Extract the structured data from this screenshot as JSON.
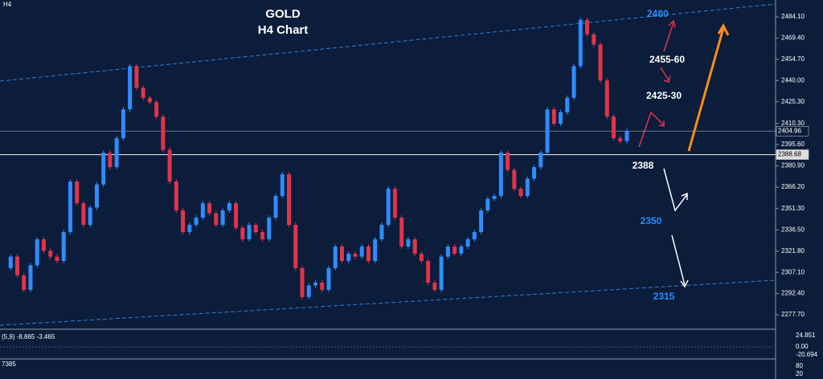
{
  "chart_data": {
    "type": "candlestick",
    "title": "GOLD",
    "subtitle": "H4 Chart",
    "timeframe": "H4",
    "values": [
      2310,
      2318,
      2305,
      2295,
      2312,
      2330,
      2322,
      2318,
      2315,
      2335,
      2370,
      2355,
      2340,
      2352,
      2368,
      2390,
      2380,
      2400,
      2420,
      2450,
      2435,
      2428,
      2425,
      2415,
      2392,
      2370,
      2350,
      2335,
      2340,
      2345,
      2355,
      2348,
      2340,
      2350,
      2355,
      2338,
      2330,
      2340,
      2335,
      2330,
      2345,
      2360,
      2375,
      2340,
      2310,
      2290,
      2298,
      2300,
      2295,
      2310,
      2325,
      2315,
      2320,
      2318,
      2325,
      2315,
      2330,
      2340,
      2365,
      2345,
      2325,
      2330,
      2320,
      2315,
      2300,
      2295,
      2318,
      2325,
      2320,
      2325,
      2330,
      2335,
      2350,
      2358,
      2360,
      2390,
      2378,
      2365,
      2360,
      2372,
      2380,
      2390,
      2420,
      2410,
      2418,
      2428,
      2450,
      2482,
      2472,
      2465,
      2440,
      2415,
      2400,
      2398,
      2405
    ],
    "up_color": "#2f8cff",
    "down_color": "#e0344a",
    "ylim": [
      2267.7,
      2495.8
    ],
    "yticks": [
      {
        "value": 2277.7,
        "label": "2277.70"
      },
      {
        "value": 2292.4,
        "label": "2292.40"
      },
      {
        "value": 2307.1,
        "label": "2307.10"
      },
      {
        "value": 2321.8,
        "label": "2321.80"
      },
      {
        "value": 2336.5,
        "label": "2336.50"
      },
      {
        "value": 2351.3,
        "label": "2351.30"
      },
      {
        "value": 2366.2,
        "label": "2366.20"
      },
      {
        "value": 2380.9,
        "label": "2380.90"
      },
      {
        "value": 2395.6,
        "label": "2395.60"
      },
      {
        "value": 2410.3,
        "label": "2410.30"
      },
      {
        "value": 2425.3,
        "label": "2425.30"
      },
      {
        "value": 2440.0,
        "label": "2440.00"
      },
      {
        "value": 2454.7,
        "label": "2454.70"
      },
      {
        "value": 2469.4,
        "label": "2469.40"
      },
      {
        "value": 2484.1,
        "label": "2484.10"
      }
    ],
    "price_lines": [
      {
        "value": 2404.96,
        "label": "2404.96"
      },
      {
        "value": 2388.68,
        "label": "2388.68"
      }
    ],
    "annotations": [
      "2480",
      "2455-60",
      "2425-30",
      "2388",
      "2350",
      "2315"
    ],
    "oscillator": {
      "label": "(5,9) -8.865 -3.465",
      "levels": [
        "24.851",
        "0.00",
        "-20.694"
      ]
    },
    "stochastic": {
      "label": "7385",
      "levels": [
        "80",
        "20"
      ]
    }
  }
}
